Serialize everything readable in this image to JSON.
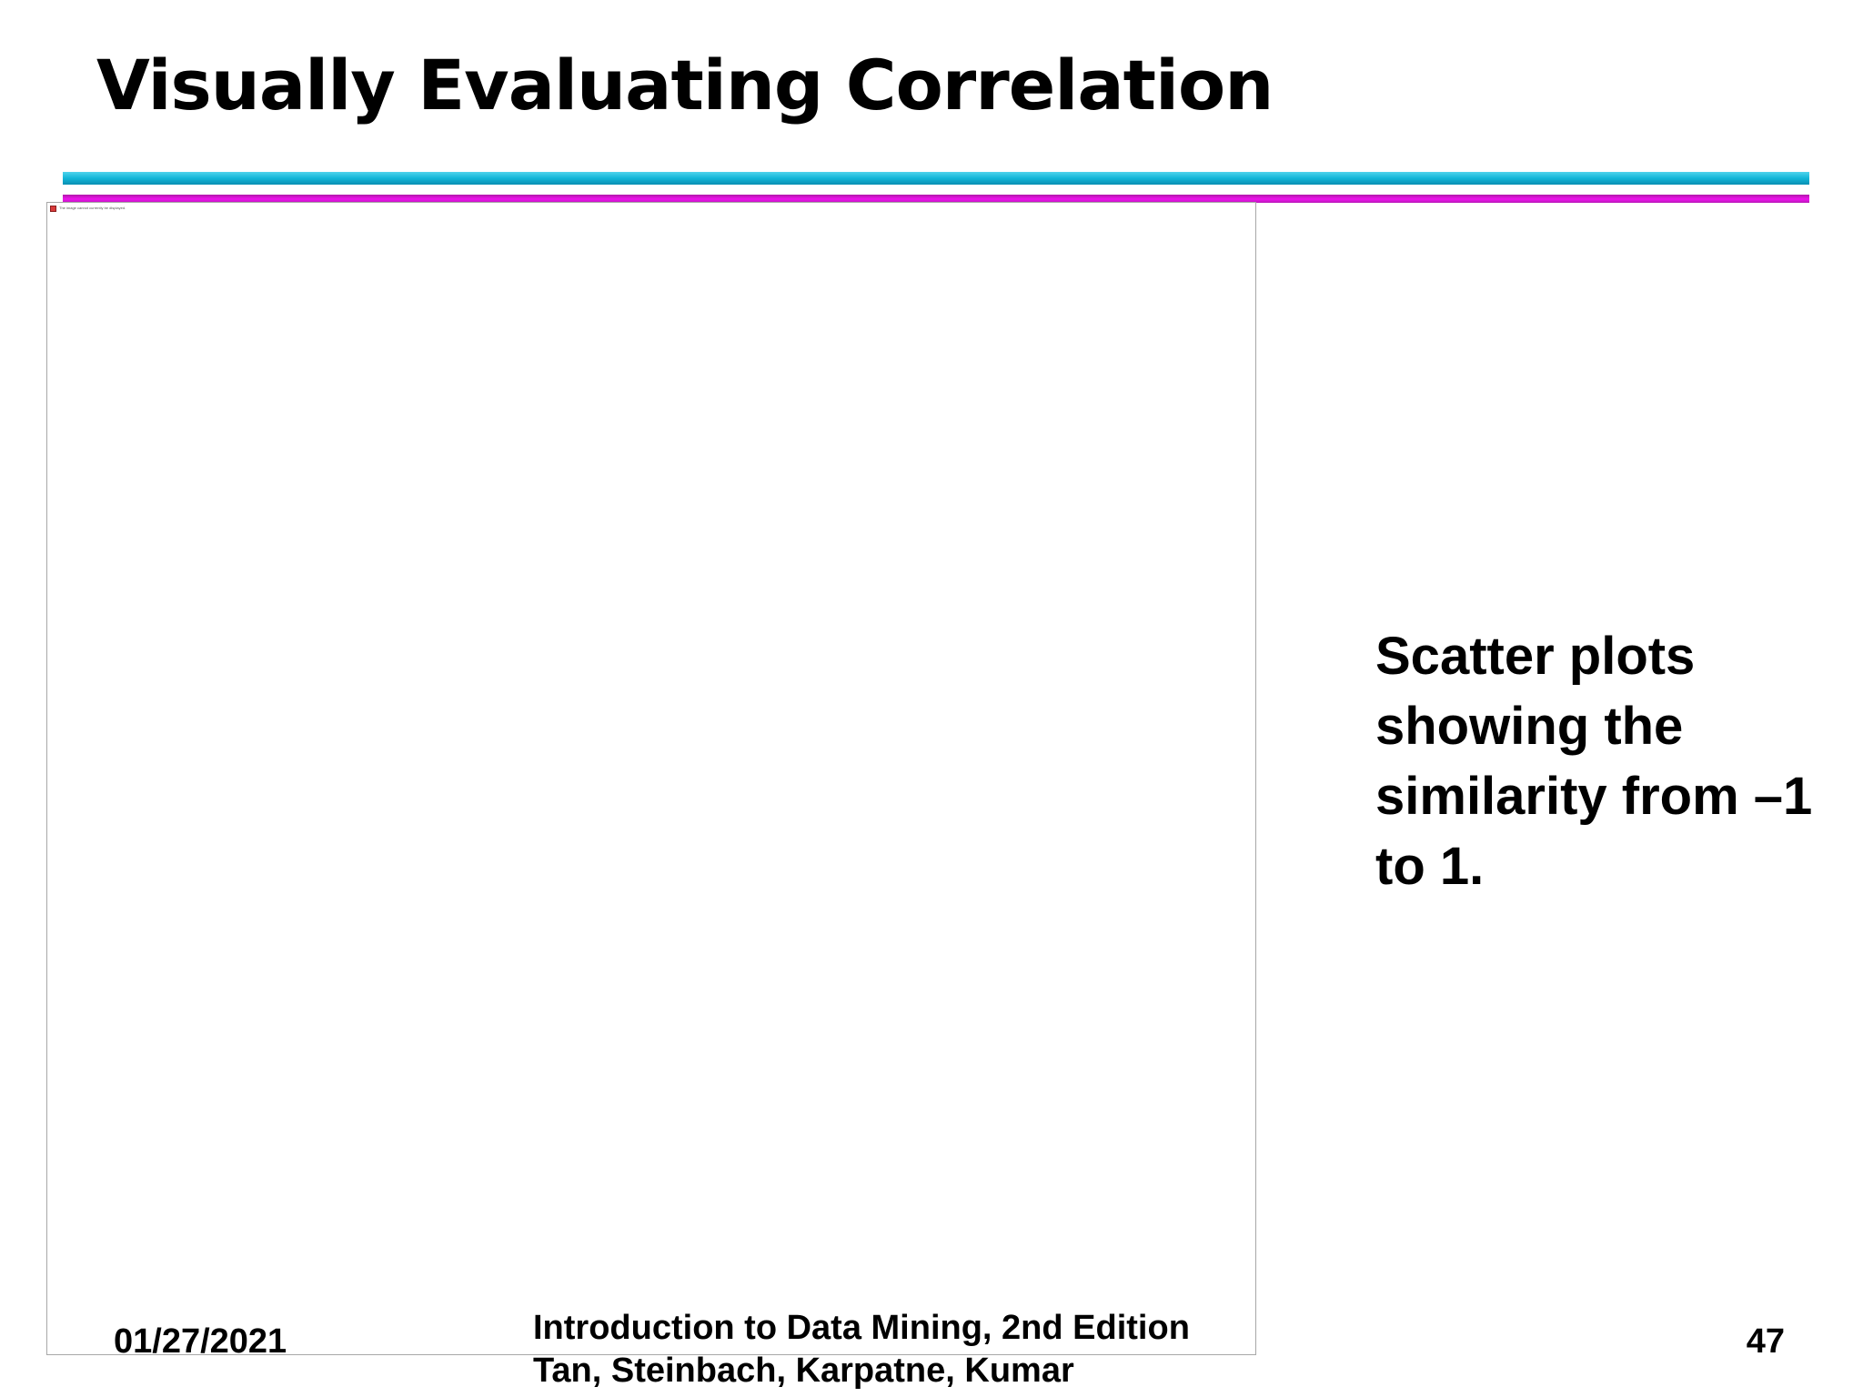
{
  "slide": {
    "title": "Visually Evaluating Correlation",
    "body_text": "Scatter plots showing the similarity from –1 to 1.",
    "image_placeholder": {
      "icon": "broken-image-icon",
      "alt_text": "The image cannot currently be displayed."
    }
  },
  "footer": {
    "date": "01/27/2021",
    "book_line1": "Introduction to Data Mining, 2nd Edition",
    "book_line2": "Tan, Steinbach, Karpatne, Kumar",
    "page_number": "47"
  },
  "colors": {
    "rule_cyan": "#12b6d8",
    "rule_magenta": "#ef12ef",
    "frame_border": "#a8a8a8"
  }
}
